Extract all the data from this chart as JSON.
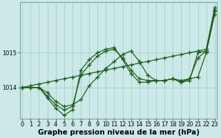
{
  "xlabel": "Graphe pression niveau de la mer (hPa)",
  "bg_color": "#cce8e8",
  "grid_color": "#99ccbb",
  "line_color": "#1a5c1a",
  "marker": "+",
  "markersize": 4,
  "linewidth": 0.9,
  "hours": [
    0,
    1,
    2,
    3,
    4,
    5,
    6,
    7,
    8,
    9,
    10,
    11,
    12,
    13,
    14,
    15,
    16,
    17,
    18,
    19,
    20,
    21,
    22,
    23
  ],
  "series": [
    [
      1014.0,
      1014.0,
      1014.0,
      1013.85,
      1013.6,
      1013.45,
      1013.5,
      1013.65,
      1014.05,
      1014.3,
      1014.55,
      1014.75,
      1014.95,
      1015.05,
      1014.75,
      1014.35,
      1014.2,
      1014.2,
      1014.25,
      1014.2,
      1014.25,
      1014.3,
      1015.0,
      1016.1
    ],
    [
      1014.0,
      1014.0,
      1014.0,
      1013.75,
      1013.5,
      1013.35,
      1013.45,
      1014.35,
      1014.65,
      1014.9,
      1015.05,
      1015.1,
      1014.85,
      1014.5,
      1014.25,
      1014.2,
      1014.2,
      1014.2,
      1014.25,
      1014.15,
      1014.25,
      1014.85,
      1015.05,
      1016.25
    ],
    [
      1014.0,
      1014.05,
      1014.1,
      1014.15,
      1014.2,
      1014.25,
      1014.3,
      1014.35,
      1014.4,
      1014.45,
      1014.5,
      1014.55,
      1014.6,
      1014.65,
      1014.7,
      1014.75,
      1014.8,
      1014.85,
      1014.9,
      1014.95,
      1015.0,
      1015.05,
      1015.1,
      1016.2
    ],
    [
      1014.0,
      1014.0,
      1014.0,
      1013.7,
      1013.4,
      1013.2,
      1013.35,
      1014.5,
      1014.8,
      1015.0,
      1015.1,
      1015.15,
      1014.8,
      1014.4,
      1014.15,
      1014.15,
      1014.2,
      1014.2,
      1014.25,
      1014.15,
      1014.2,
      1015.0,
      1015.05,
      1016.3
    ]
  ],
  "ylim": [
    1013.1,
    1016.45
  ],
  "yticks": [
    1014,
    1015
  ],
  "xlim": [
    -0.3,
    23.3
  ],
  "xticks": [
    0,
    1,
    2,
    3,
    4,
    5,
    6,
    7,
    8,
    9,
    10,
    11,
    12,
    13,
    14,
    15,
    16,
    17,
    18,
    19,
    20,
    21,
    22,
    23
  ],
  "xlabel_fontsize": 7.5,
  "tick_fontsize": 6.0,
  "fig_bg": "#cce8e8"
}
